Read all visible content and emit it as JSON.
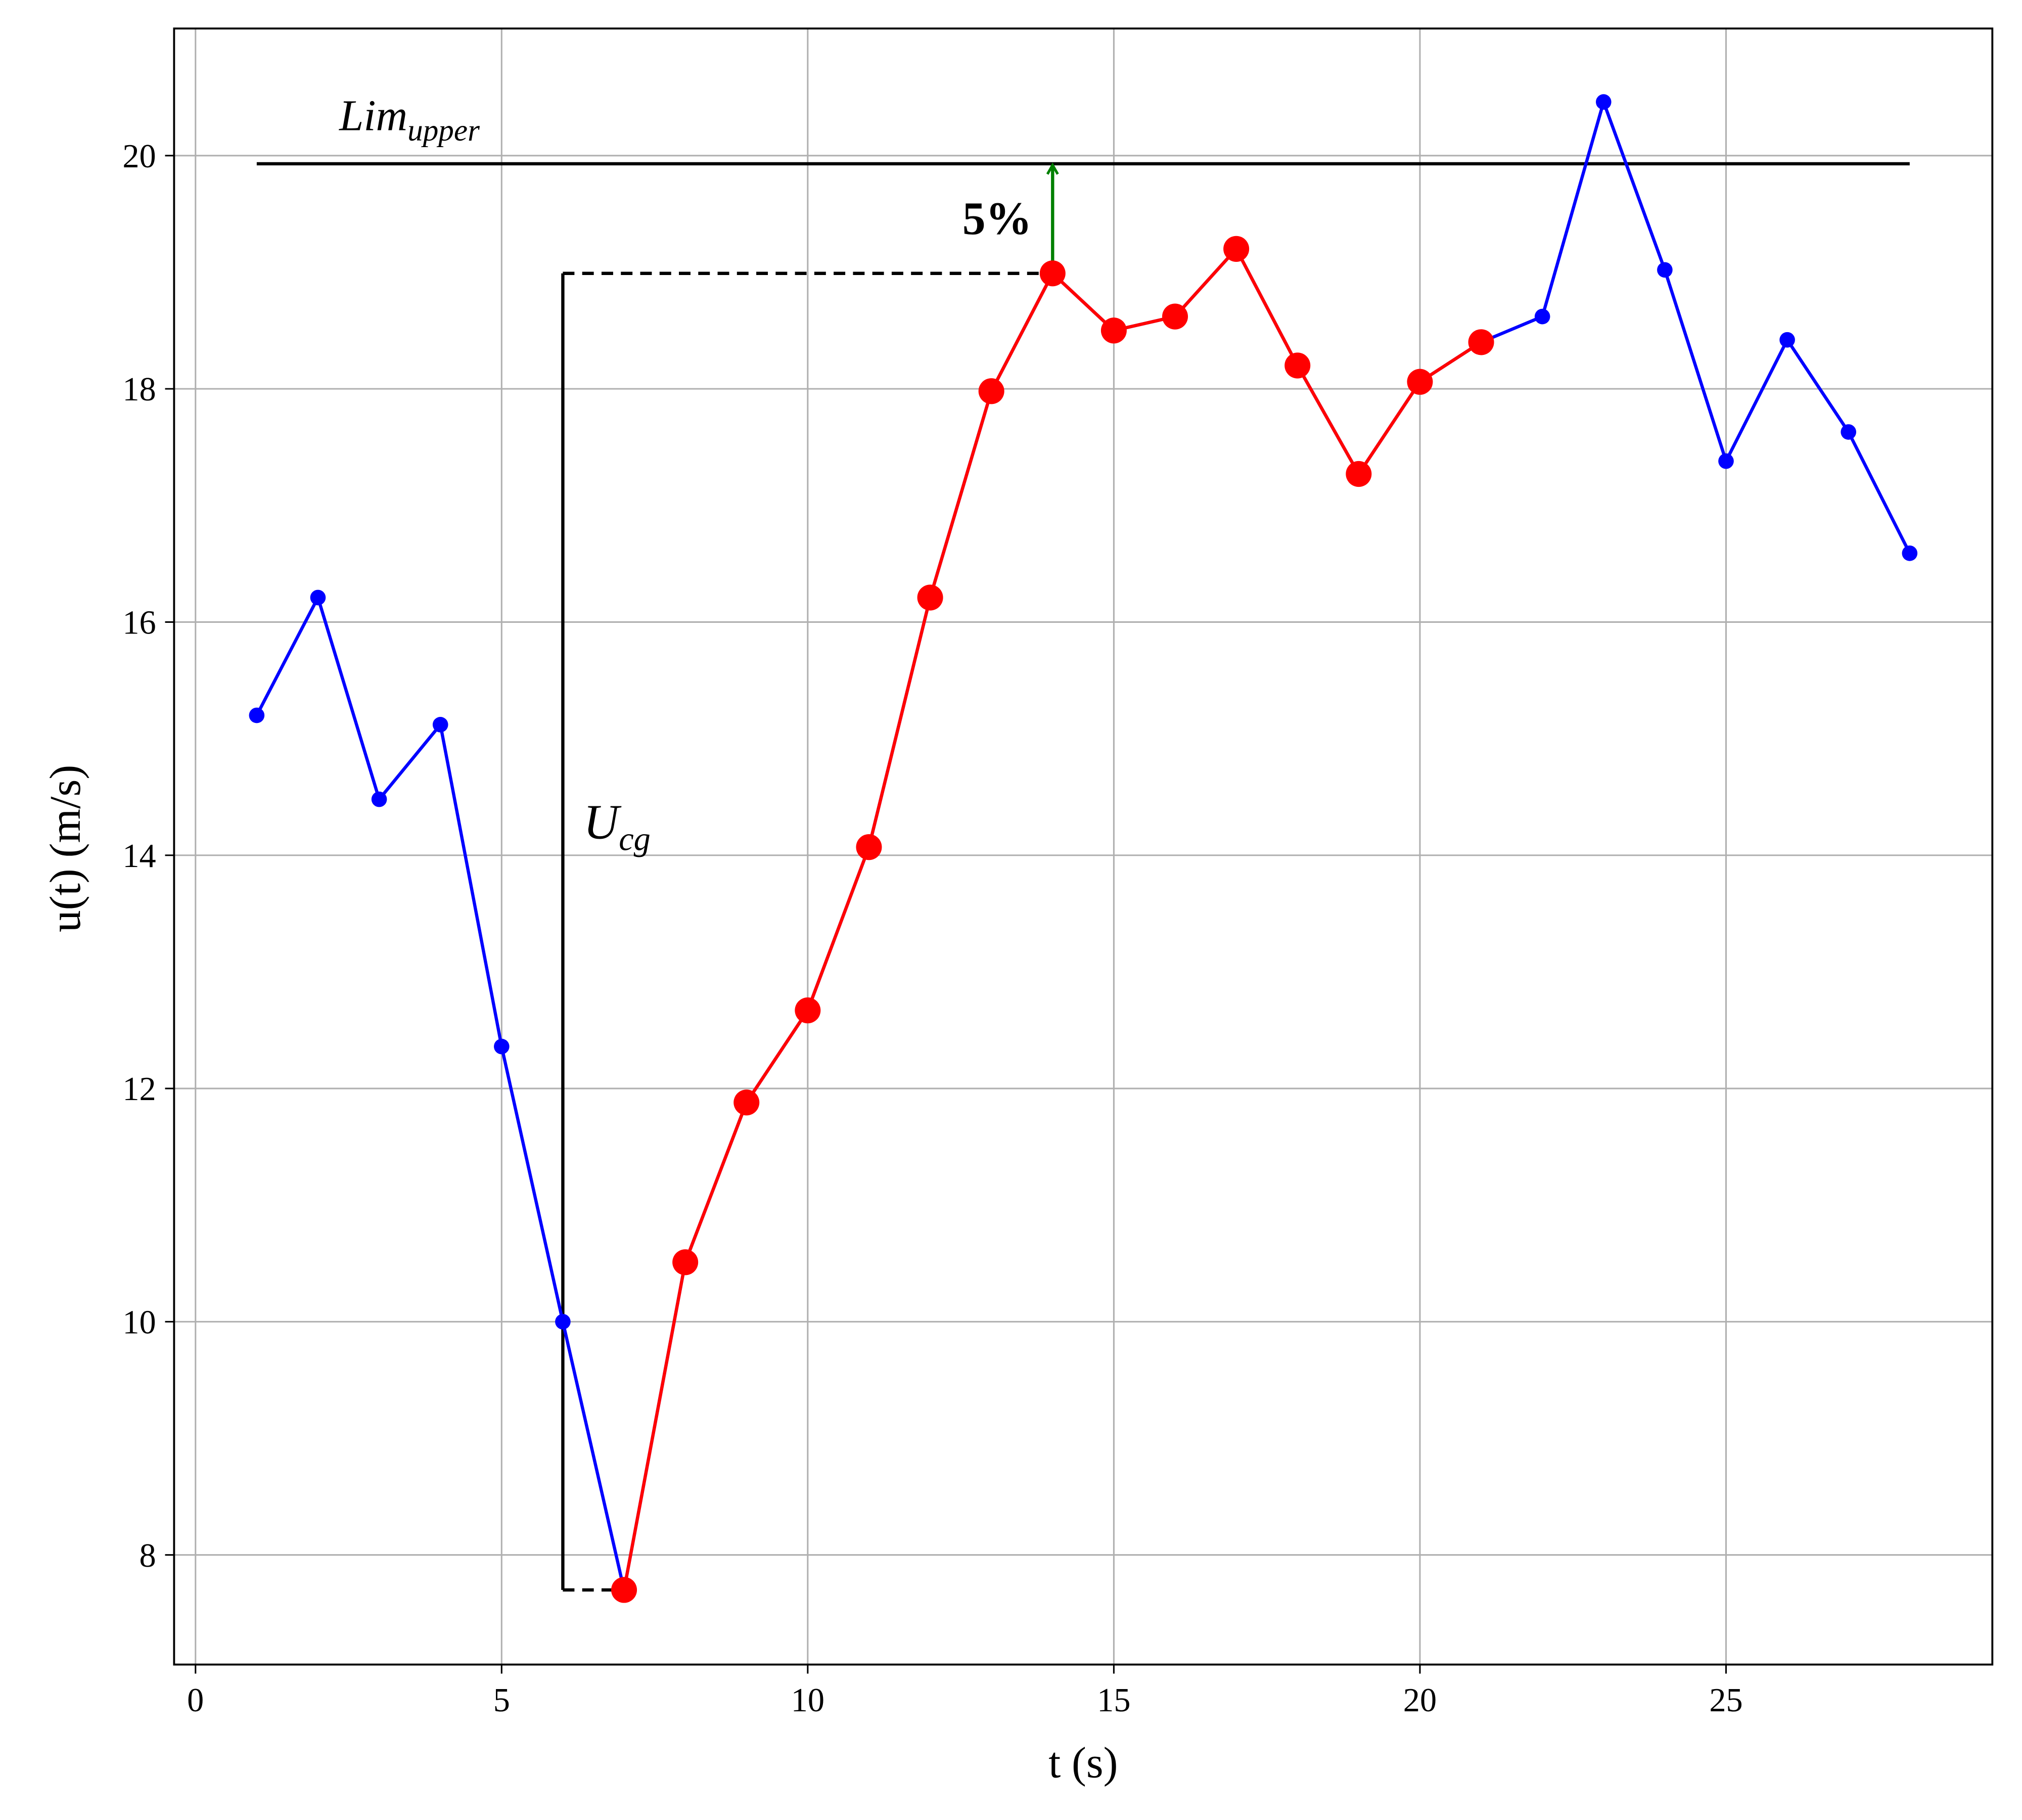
{
  "chart_data": {
    "type": "line",
    "xlabel": "t (s)",
    "ylabel": "u(t) (m/s)",
    "xlim": [
      -0.35,
      29.35
    ],
    "xticks": [
      0,
      5,
      10,
      15,
      20,
      25
    ],
    "ylim": [
      7.06,
      21.09
    ],
    "yticks": [
      8,
      10,
      12,
      14,
      16,
      18,
      20
    ],
    "grid": true,
    "series": [
      {
        "color": "#0000ff",
        "marker_size": 6,
        "x": [
          1,
          2,
          3,
          4,
          5,
          6,
          7,
          8,
          9,
          10,
          11,
          12,
          13,
          14,
          15,
          16,
          17,
          18,
          19,
          20,
          21,
          22,
          23,
          24,
          25,
          26,
          27,
          28
        ],
        "values": [
          15.2,
          16.21,
          14.48,
          15.12,
          12.36,
          10.0,
          7.7,
          10.51,
          11.88,
          12.67,
          14.07,
          16.21,
          17.98,
          18.99,
          18.5,
          18.62,
          19.2,
          18.2,
          17.27,
          18.06,
          18.4,
          18.62,
          20.46,
          19.02,
          17.38,
          18.42,
          17.63,
          16.59
        ]
      },
      {
        "color": "#ff0000",
        "marker_size": 10,
        "x": [
          7,
          8,
          9,
          10,
          11,
          12,
          13,
          14,
          15,
          16,
          17,
          18,
          19,
          20,
          21
        ],
        "values": [
          7.7,
          10.51,
          11.88,
          12.67,
          14.07,
          16.21,
          17.98,
          18.99,
          18.5,
          18.62,
          19.2,
          18.2,
          17.27,
          18.06,
          18.4
        ]
      }
    ],
    "upper_limit": {
      "value": 19.93,
      "label": "Lim",
      "subscript": "upper"
    },
    "gust_label": {
      "label": "U",
      "subscript": "cg"
    },
    "margin_label": "5%",
    "margin_color": "#008000"
  }
}
